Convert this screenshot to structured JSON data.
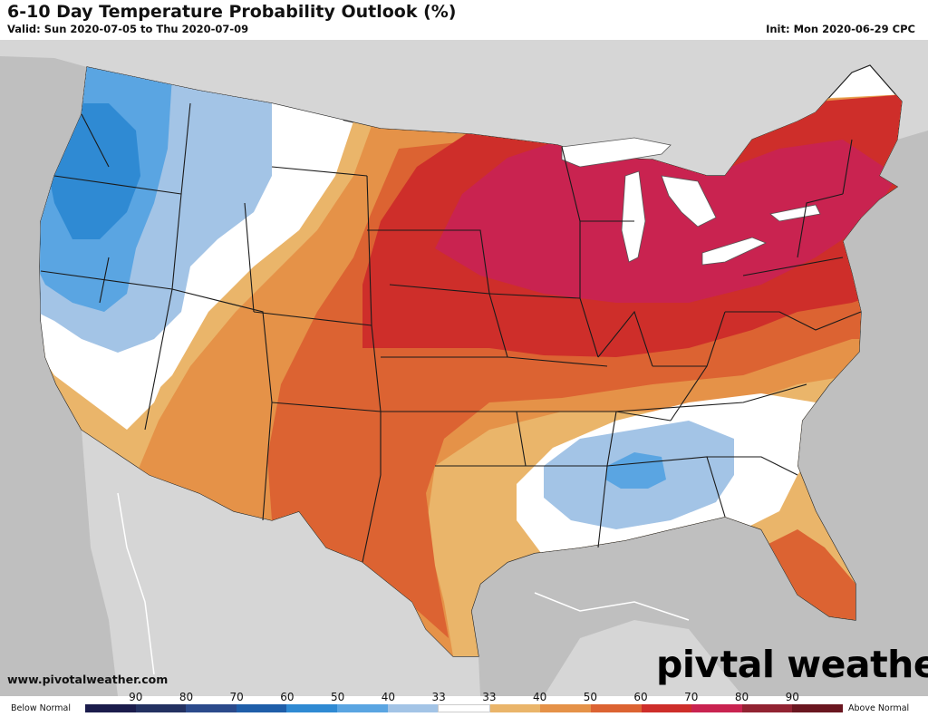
{
  "header": {
    "title": "6-10 Day Temperature Probability Outlook (%)",
    "valid": "Valid: Sun 2020-07-05 to Thu 2020-07-09",
    "init": "Init: Mon 2020-06-29 CPC"
  },
  "footer": {
    "website": "www.pivotalweather.com",
    "brand_left": "piv",
    "brand_right": "tal weather",
    "brand_icon": "gear-icon"
  },
  "legend": {
    "below_label": "Below Normal",
    "above_label": "Above Normal",
    "ticks": [
      "90",
      "80",
      "70",
      "60",
      "50",
      "40",
      "33",
      "33",
      "40",
      "50",
      "60",
      "70",
      "80",
      "90"
    ],
    "colors": [
      "#1b1c4c",
      "#233161",
      "#2b4a8b",
      "#1f5ea9",
      "#2f8ad3",
      "#5aa5e2",
      "#a3c4e6",
      "#ffffff",
      "#eab56a",
      "#e59248",
      "#dc6332",
      "#ce2e2a",
      "#c92350",
      "#922332",
      "#6a1620"
    ]
  },
  "map": {
    "colors": {
      "land": "#ffffff",
      "outside": "#bfbfbf",
      "water": "#ffffff",
      "below_33": "#a3c4e6",
      "below_40": "#5aa5e2",
      "below_50": "#2f8ad3",
      "above_33": "#eab56a",
      "above_40": "#e59248",
      "above_50": "#dc6332",
      "above_60": "#ce2e2a",
      "above_70": "#c92350"
    }
  }
}
